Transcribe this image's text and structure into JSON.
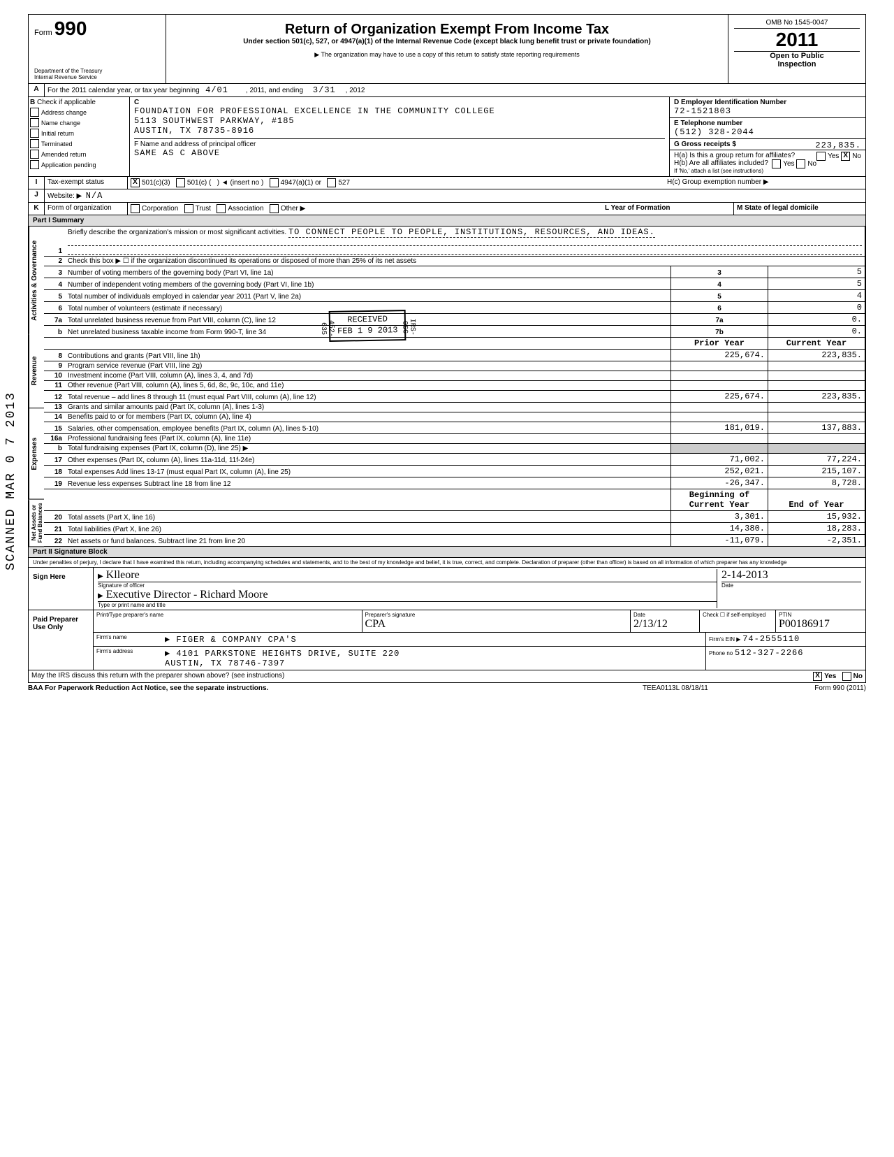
{
  "scanned_side": "SCANNED MAR 0 7 2013",
  "header": {
    "form_label": "Form",
    "form_num": "990",
    "dept": "Department of the Treasury\nInternal Revenue Service",
    "title": "Return of Organization Exempt From Income Tax",
    "sub": "Under section 501(c), 527, or 4947(a)(1) of the Internal Revenue Code (except black lung benefit trust or private foundation)",
    "note": "▶ The organization may have to use a copy of this return to satisfy state reporting requirements",
    "omb": "OMB No 1545-0047",
    "year": "2011",
    "open1": "Open to Public",
    "open2": "Inspection"
  },
  "rowA": {
    "label": "A",
    "text1": "For the 2011 calendar year, or tax year beginning",
    "begin": "4/01",
    "mid": ", 2011, and ending",
    "end": "3/31",
    "endyear": ", 2012"
  },
  "secB": {
    "label": "B",
    "check_if": "Check if applicable",
    "c_label": "C",
    "checks": [
      "Address change",
      "Name change",
      "Initial return",
      "Terminated",
      "Amended return",
      "Application pending"
    ],
    "org_name": "FOUNDATION FOR PROFESSIONAL EXCELLENCE IN THE COMMUNITY COLLEGE",
    "addr1": "5113 SOUTHWEST PARKWAY, #185",
    "addr2": "AUSTIN, TX 78735-8916",
    "d_label": "D  Employer Identification Number",
    "ein": "72-1521803",
    "e_label": "E  Telephone number",
    "phone": "(512) 328-2044",
    "g_label": "G  Gross receipts $",
    "gross": "223,835.",
    "f_label": "F Name and address of principal officer",
    "f_val": "SAME AS C ABOVE",
    "ha": "H(a) Is this a group return for affiliates?",
    "hb": "H(b) Are all affiliates included?",
    "hnote": "If 'No,' attach a list (see instructions)",
    "hc": "H(c) Group exemption number ▶",
    "ha_no_checked": true
  },
  "rowI": {
    "label": "I",
    "text": "Tax-exempt status",
    "opt1": "501(c)(3)",
    "opt2": "501(c) (",
    "opt2b": ")  ◄  (insert no )",
    "opt3": "4947(a)(1) or",
    "opt4": "527",
    "checked": "501c3"
  },
  "rowJ": {
    "label": "J",
    "text": "Website: ▶",
    "val": "N/A"
  },
  "rowK": {
    "label": "K",
    "text": "Form of organization",
    "opts": [
      "Corporation",
      "Trust",
      "Association",
      "Other ▶"
    ],
    "l_text": "L Year of Formation",
    "m_text": "M State of legal domicile"
  },
  "part1": {
    "hdr": "Part I   Summary",
    "side_gov": "Activities & Governance",
    "side_rev": "Revenue",
    "side_exp": "Expenses",
    "side_net": "Net Assets or\nFund Balances",
    "l1": "Briefly describe the organization's mission or most significant activities.",
    "l1v": "TO CONNECT PEOPLE TO PEOPLE, INSTITUTIONS, RESOURCES, AND IDEAS.",
    "l2": "Check this box ▶ ☐ if the organization discontinued its operations or disposed of more than 25% of its net assets",
    "lines": [
      {
        "n": "3",
        "d": "Number of voting members of the governing body (Part VI, line 1a)",
        "c": "3",
        "v": "5"
      },
      {
        "n": "4",
        "d": "Number of independent voting members of the governing body (Part VI, line 1b)",
        "c": "4",
        "v": "5"
      },
      {
        "n": "5",
        "d": "Total number of individuals employed in calendar year 2011 (Part V, line 2a)",
        "c": "5",
        "v": "4"
      },
      {
        "n": "6",
        "d": "Total number of volunteers (estimate if necessary)",
        "c": "6",
        "v": "0"
      },
      {
        "n": "7a",
        "d": "Total unrelated business revenue from Part VIII, column (C), line 12",
        "c": "7a",
        "v": "0."
      },
      {
        "n": "b",
        "d": "Net unrelated business taxable income from Form 990-T, line 34",
        "c": "7b",
        "v": "0."
      }
    ],
    "colhdr_prior": "Prior Year",
    "colhdr_curr": "Current Year",
    "rev": [
      {
        "n": "8",
        "d": "Contributions and grants (Part VIII, line 1h)",
        "p": "225,674.",
        "c": "223,835."
      },
      {
        "n": "9",
        "d": "Program service revenue (Part VIII, line 2g)",
        "p": "",
        "c": ""
      },
      {
        "n": "10",
        "d": "Investment income (Part VIII, column (A), lines 3, 4, and 7d)",
        "p": "",
        "c": ""
      },
      {
        "n": "11",
        "d": "Other revenue (Part VIII, column (A), lines 5, 6d, 8c, 9c, 10c, and 11e)",
        "p": "",
        "c": ""
      },
      {
        "n": "12",
        "d": "Total revenue – add lines 8 through 11 (must equal Part VIII, column (A), line 12)",
        "p": "225,674.",
        "c": "223,835."
      }
    ],
    "exp": [
      {
        "n": "13",
        "d": "Grants and similar amounts paid (Part IX, column (A), lines 1-3)",
        "p": "",
        "c": ""
      },
      {
        "n": "14",
        "d": "Benefits paid to or for members (Part IX, column (A), line 4)",
        "p": "",
        "c": ""
      },
      {
        "n": "15",
        "d": "Salaries, other compensation, employee benefits (Part IX, column (A), lines 5-10)",
        "p": "181,019.",
        "c": "137,883."
      },
      {
        "n": "16a",
        "d": "Professional fundraising fees (Part IX, column (A), line 11e)",
        "p": "",
        "c": ""
      },
      {
        "n": "b",
        "d": "Total fundraising expenses (Part IX, column (D), line 25) ▶",
        "p": "shade",
        "c": "shade"
      },
      {
        "n": "17",
        "d": "Other expenses (Part IX, column (A), lines 11a-11d, 11f-24e)",
        "p": "71,002.",
        "c": "77,224."
      },
      {
        "n": "18",
        "d": "Total expenses Add lines 13-17 (must equal Part IX, column (A), line 25)",
        "p": "252,021.",
        "c": "215,107."
      },
      {
        "n": "19",
        "d": "Revenue less expenses Subtract line 18 from line 12",
        "p": "-26,347.",
        "c": "8,728."
      }
    ],
    "colhdr_beg": "Beginning of Current Year",
    "colhdr_end": "End of Year",
    "net": [
      {
        "n": "20",
        "d": "Total assets (Part X, line 16)",
        "p": "3,301.",
        "c": "15,932."
      },
      {
        "n": "21",
        "d": "Total liabilities (Part X, line 26)",
        "p": "14,380.",
        "c": "18,283."
      },
      {
        "n": "22",
        "d": "Net assets or fund balances. Subtract line 21 from line 20",
        "p": "-11,079.",
        "c": "-2,351."
      }
    ]
  },
  "stamp": {
    "line1": "RECEIVED",
    "line2": "FEB 1 9 2013",
    "line3": "IRS-OSC",
    "dln": "452-635"
  },
  "part2": {
    "hdr": "Part II   Signature Block",
    "decl": "Under penalties of perjury, I declare that I have examined this return, including accompanying schedules and statements, and to the best of my knowledge and belief, it is true, correct, and complete. Declaration of preparer (other than officer) is based on all information of which preparer has any knowledge",
    "sign_here": "Sign Here",
    "sig_off": "Signature of officer",
    "sig_date_lbl": "Date",
    "sig_date": "2-14-2013",
    "sig_name_lbl": "Type or print name and title",
    "sig_name": "Executive Director - Richard Moore",
    "sig_hand": "Klleore",
    "paid": "Paid Preparer Use Only",
    "prep_name_lbl": "Print/Type preparer's name",
    "prep_sig_lbl": "Preparer's signature",
    "prep_sig": "CPA",
    "prep_date_lbl": "Date",
    "prep_date": "2/13/12",
    "prep_check": "Check ☐ if self-employed",
    "ptin_lbl": "PTIN",
    "ptin": "P00186917",
    "firm_name_lbl": "Firm's name",
    "firm_name": "▶ FIGER & COMPANY CPA'S",
    "firm_addr_lbl": "Firm's address",
    "firm_addr": "▶ 4101 PARKSTONE HEIGHTS DRIVE, SUITE 220\nAUSTIN, TX 78746-7397",
    "firm_ein_lbl": "Firm's EIN ▶",
    "firm_ein": "74-2555110",
    "firm_phone_lbl": "Phone no",
    "firm_phone": "512-327-2266",
    "discuss": "May the IRS discuss this return with the preparer shown above? (see instructions)",
    "discuss_yes": "Yes",
    "discuss_no": "No",
    "discuss_checked": true
  },
  "footer": {
    "baa": "BAA  For Paperwork Reduction Act Notice, see the separate instructions.",
    "code": "TEEA0113L  08/18/11",
    "form": "Form 990 (2011)"
  }
}
